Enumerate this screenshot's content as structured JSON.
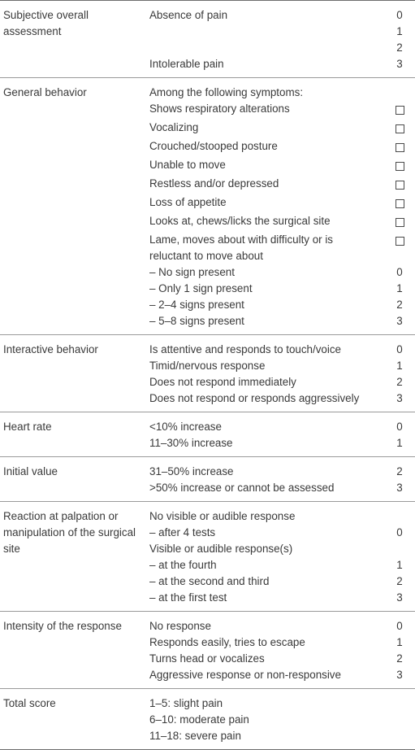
{
  "table": {
    "sections": [
      {
        "category": "Subjective overall assessment",
        "items": [
          {
            "text": "Absence of pain",
            "score": "0"
          },
          {
            "text": "",
            "score": "1"
          },
          {
            "text": "",
            "score": "2"
          },
          {
            "text": "Intolerable pain",
            "score": "3"
          }
        ]
      },
      {
        "category": "General behavior",
        "items": [
          {
            "text": "Among the following symptoms:",
            "score": ""
          },
          {
            "text": "Shows respiratory alterations",
            "checkbox": true
          },
          {
            "text": "Vocalizing",
            "checkbox": true
          },
          {
            "text": "Crouched/stooped posture",
            "checkbox": true
          },
          {
            "text": "Unable to move",
            "checkbox": true
          },
          {
            "text": "Restless and/or depressed",
            "checkbox": true
          },
          {
            "text": "Loss of appetite",
            "checkbox": true
          },
          {
            "text": "Looks at, chews/licks the surgical site",
            "checkbox": true
          },
          {
            "text": "Lame, moves about with difficulty or is reluctant to move about",
            "checkbox": true
          },
          {
            "text": "– No sign present",
            "score": "0"
          },
          {
            "text": "– Only 1 sign present",
            "score": "1"
          },
          {
            "text": "– 2–4 signs present",
            "score": "2"
          },
          {
            "text": "– 5–8 signs present",
            "score": "3"
          }
        ]
      },
      {
        "category": "Interactive behavior",
        "items": [
          {
            "text": "Is attentive and responds to touch/voice",
            "score": "0"
          },
          {
            "text": "Timid/nervous response",
            "score": "1"
          },
          {
            "text": "Does not respond immediately",
            "score": "2"
          },
          {
            "text": "Does not respond or responds aggressively",
            "score": "3"
          }
        ]
      },
      {
        "category": "Heart rate",
        "items": [
          {
            "text": "<10% increase",
            "score": "0"
          },
          {
            "text": "11–30% increase",
            "score": "1"
          }
        ]
      },
      {
        "category": "Initial value",
        "items": [
          {
            "text": "31–50% increase",
            "score": "2"
          },
          {
            "text": ">50% increase or cannot be assessed",
            "score": "3"
          }
        ]
      },
      {
        "category": "Reaction at palpation or manipulation of the surgical site",
        "items": [
          {
            "text": "No visible or audible response",
            "score": ""
          },
          {
            "text": "– after 4 tests",
            "score": "0"
          },
          {
            "text": "Visible or audible response(s)",
            "score": ""
          },
          {
            "text": "– at the fourth",
            "score": "1"
          },
          {
            "text": "– at the second and third",
            "score": "2"
          },
          {
            "text": "– at the first test",
            "score": "3"
          }
        ]
      },
      {
        "category": "Intensity of the response",
        "items": [
          {
            "text": "No response",
            "score": "0"
          },
          {
            "text": "Responds easily, tries to escape",
            "score": "1"
          },
          {
            "text": "Turns head or vocalizes",
            "score": "2"
          },
          {
            "text": "Aggressive response or non-responsive",
            "score": "3"
          }
        ]
      },
      {
        "category": "Total score",
        "items": [
          {
            "text": "1–5: slight pain",
            "score": ""
          },
          {
            "text": "6–10: moderate pain",
            "score": ""
          },
          {
            "text": "11–18: severe pain",
            "score": ""
          }
        ]
      }
    ]
  }
}
